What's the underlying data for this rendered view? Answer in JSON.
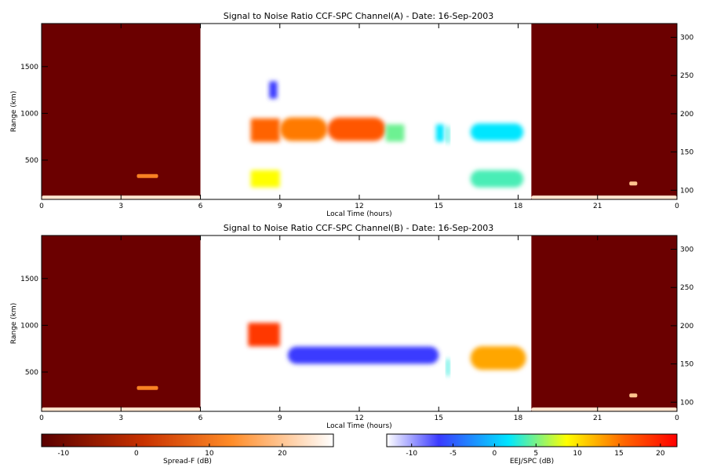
{
  "colors": {
    "background": "#ffffff",
    "spread_f_panel": "#6b0000",
    "outline": "#000000"
  },
  "chart_data": [
    {
      "type": "heatmap",
      "title": "Signal to Noise Ratio CCF-SPC Channel(A) - Date: 16-Sep-2003",
      "xlabel": "Local Time (hours)",
      "ylabel": "Range (km)",
      "xlim": [
        0,
        24
      ],
      "ylim": [
        80,
        1960
      ],
      "right_ylim": [
        88,
        318
      ],
      "x_ticks": [
        "0",
        "3",
        "6",
        "9",
        "12",
        "15",
        "18",
        "21",
        "0"
      ],
      "y_ticks": [
        "500",
        "1000",
        "1500"
      ],
      "right_ticks": [
        "100",
        "150",
        "200",
        "250",
        "300"
      ],
      "night_segments": [
        [
          0,
          6
        ],
        [
          18.5,
          24
        ]
      ],
      "features": [
        {
          "x0": 0.0,
          "x1": 6.0,
          "y": 100,
          "v": 24
        },
        {
          "x0": 3.6,
          "x1": 4.4,
          "y": 330,
          "v": 12
        },
        {
          "x0": 7.9,
          "x1": 9.0,
          "y": 820,
          "v": 15
        },
        {
          "x0": 9.0,
          "x1": 10.8,
          "y": 830,
          "v": 14
        },
        {
          "x0": 10.8,
          "x1": 13.0,
          "y": 830,
          "v": 16
        },
        {
          "x0": 13.0,
          "x1": 13.7,
          "y": 790,
          "v": 4
        },
        {
          "x0": 14.9,
          "x1": 15.2,
          "y": 790,
          "v": 1
        },
        {
          "x0": 15.3,
          "x1": 15.4,
          "y": 770,
          "v": 2
        },
        {
          "x0": 16.2,
          "x1": 18.2,
          "y": 800,
          "v": 1
        },
        {
          "x0": 7.9,
          "x1": 9.0,
          "y": 300,
          "v": 8
        },
        {
          "x0": 16.2,
          "x1": 18.2,
          "y": 300,
          "v": 3
        },
        {
          "x0": 8.6,
          "x1": 8.9,
          "y": 1250,
          "v": -6
        },
        {
          "x0": 18.5,
          "x1": 24.0,
          "y": 100,
          "v": 24
        },
        {
          "x0": 22.2,
          "x1": 22.5,
          "y": 250,
          "v": 20
        }
      ]
    },
    {
      "type": "heatmap",
      "title": "Signal to Noise Ratio CCF-SPC Channel(B) - Date: 16-Sep-2003",
      "xlabel": "Local Time (hours)",
      "ylabel": "Range (km)",
      "xlim": [
        0,
        24
      ],
      "ylim": [
        80,
        1960
      ],
      "right_ylim": [
        88,
        318
      ],
      "x_ticks": [
        "0",
        "3",
        "6",
        "9",
        "12",
        "15",
        "18",
        "21",
        "0"
      ],
      "y_ticks": [
        "500",
        "1000",
        "1500"
      ],
      "right_ticks": [
        "100",
        "150",
        "200",
        "250",
        "300"
      ],
      "night_segments": [
        [
          0,
          6
        ],
        [
          18.5,
          24
        ]
      ],
      "features": [
        {
          "x0": 0.0,
          "x1": 6.0,
          "y": 100,
          "v": 24
        },
        {
          "x0": 3.6,
          "x1": 4.4,
          "y": 330,
          "v": 12
        },
        {
          "x0": 7.8,
          "x1": 9.0,
          "y": 900,
          "v": 18
        },
        {
          "x0": 9.3,
          "x1": 15.0,
          "y": 680,
          "v": -6
        },
        {
          "x0": 15.3,
          "x1": 15.4,
          "y": 550,
          "v": 2
        },
        {
          "x0": 16.2,
          "x1": 18.3,
          "y": 650,
          "v": 12
        },
        {
          "x0": 18.5,
          "x1": 24.0,
          "y": 100,
          "v": 24
        },
        {
          "x0": 22.2,
          "x1": 22.5,
          "y": 250,
          "v": 20
        }
      ]
    }
  ],
  "colorbars": [
    {
      "label": "Spread-F (dB)",
      "range": [
        -13,
        27
      ],
      "ticks": [
        "-10",
        "0",
        "10",
        "20"
      ],
      "colors": [
        "#5a0000",
        "#c83200",
        "#ff8c28",
        "#ffffff"
      ]
    },
    {
      "label": "EEJ/SPC (dB)",
      "range": [
        -13,
        22
      ],
      "ticks": [
        "-10",
        "-5",
        "0",
        "5",
        "10",
        "15",
        "20"
      ],
      "colors": [
        "#ffffff",
        "#3a3aff",
        "#00e6ff",
        "#ffff00",
        "#ff6400",
        "#ff0000"
      ]
    }
  ]
}
